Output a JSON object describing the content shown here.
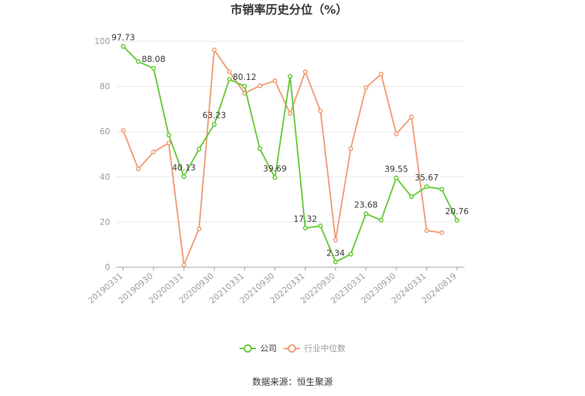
{
  "chart_data": {
    "type": "line",
    "title": "市销率历史分位（%）",
    "x": [
      "20190331",
      "20190630",
      "20190930",
      "20191231",
      "20200331",
      "20200630",
      "20200930",
      "20201231",
      "20210331",
      "20210630",
      "20210930",
      "20211231",
      "20220331",
      "20220630",
      "20220930",
      "20221231",
      "20230331",
      "20230630",
      "20230930",
      "20231231",
      "20240331",
      "20240630",
      "20240819"
    ],
    "x_tick_labels": [
      "20190331",
      "20190930",
      "20200331",
      "20200930",
      "20210331",
      "20210930",
      "20220331",
      "20220930",
      "20230331",
      "20230930",
      "20240331",
      "20240819"
    ],
    "y_ticks": [
      "0",
      "20",
      "40",
      "60",
      "80",
      "100"
    ],
    "ylim": [
      0,
      100
    ],
    "grid": true,
    "legend_position": "bottom",
    "series": [
      {
        "name": "公司",
        "color": "#5cc72d",
        "values": [
          97.73,
          91.0,
          88.08,
          58.5,
          40.13,
          52.3,
          63.23,
          83.2,
          80.12,
          52.5,
          39.69,
          84.5,
          17.32,
          18.3,
          2.34,
          5.8,
          23.68,
          20.8,
          39.55,
          31.2,
          35.67,
          34.5,
          20.76
        ],
        "labels": {
          "0": "97.73",
          "2": "88.08",
          "4": "40.13",
          "6": "63.23",
          "8": "80.12",
          "10": "39.69",
          "12": "17.32",
          "14": "2.34",
          "16": "23.68",
          "18": "39.55",
          "20": "35.67",
          "22": "20.76"
        }
      },
      {
        "name": "行业中位数",
        "color": "#f0976e",
        "values": [
          60.5,
          43.5,
          51.0,
          55.0,
          1.0,
          17.0,
          96.2,
          86.5,
          77.0,
          80.3,
          82.5,
          68.0,
          86.5,
          69.2,
          12.0,
          52.5,
          79.5,
          85.5,
          59.0,
          66.5,
          16.2,
          15.3,
          null
        ]
      }
    ],
    "source": "数据来源：恒生聚源"
  }
}
